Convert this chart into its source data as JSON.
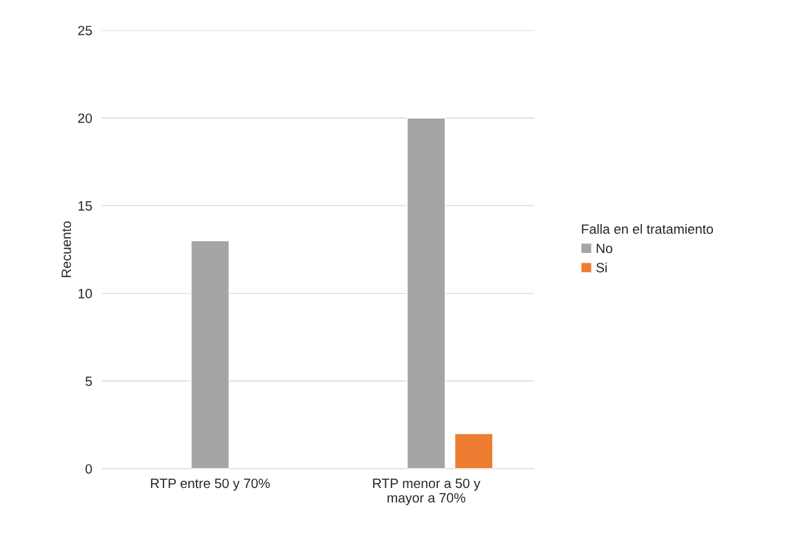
{
  "chart_data": {
    "type": "bar",
    "ylabel": "Recuento",
    "legend_title": "Falla en el tratamiento",
    "categories": [
      "RTP entre 50 y 70%",
      "RTP menor a 50 y\nmayor a 70%"
    ],
    "series": [
      {
        "name": "No",
        "color": "#a5a5a5",
        "values": [
          13,
          20
        ]
      },
      {
        "name": "Si",
        "color": "#ed7d31",
        "values": [
          null,
          2
        ]
      }
    ],
    "ylim": [
      0,
      25
    ],
    "yticks": [
      0,
      5,
      10,
      15,
      20,
      25
    ],
    "grid": "y",
    "legend": "right"
  }
}
